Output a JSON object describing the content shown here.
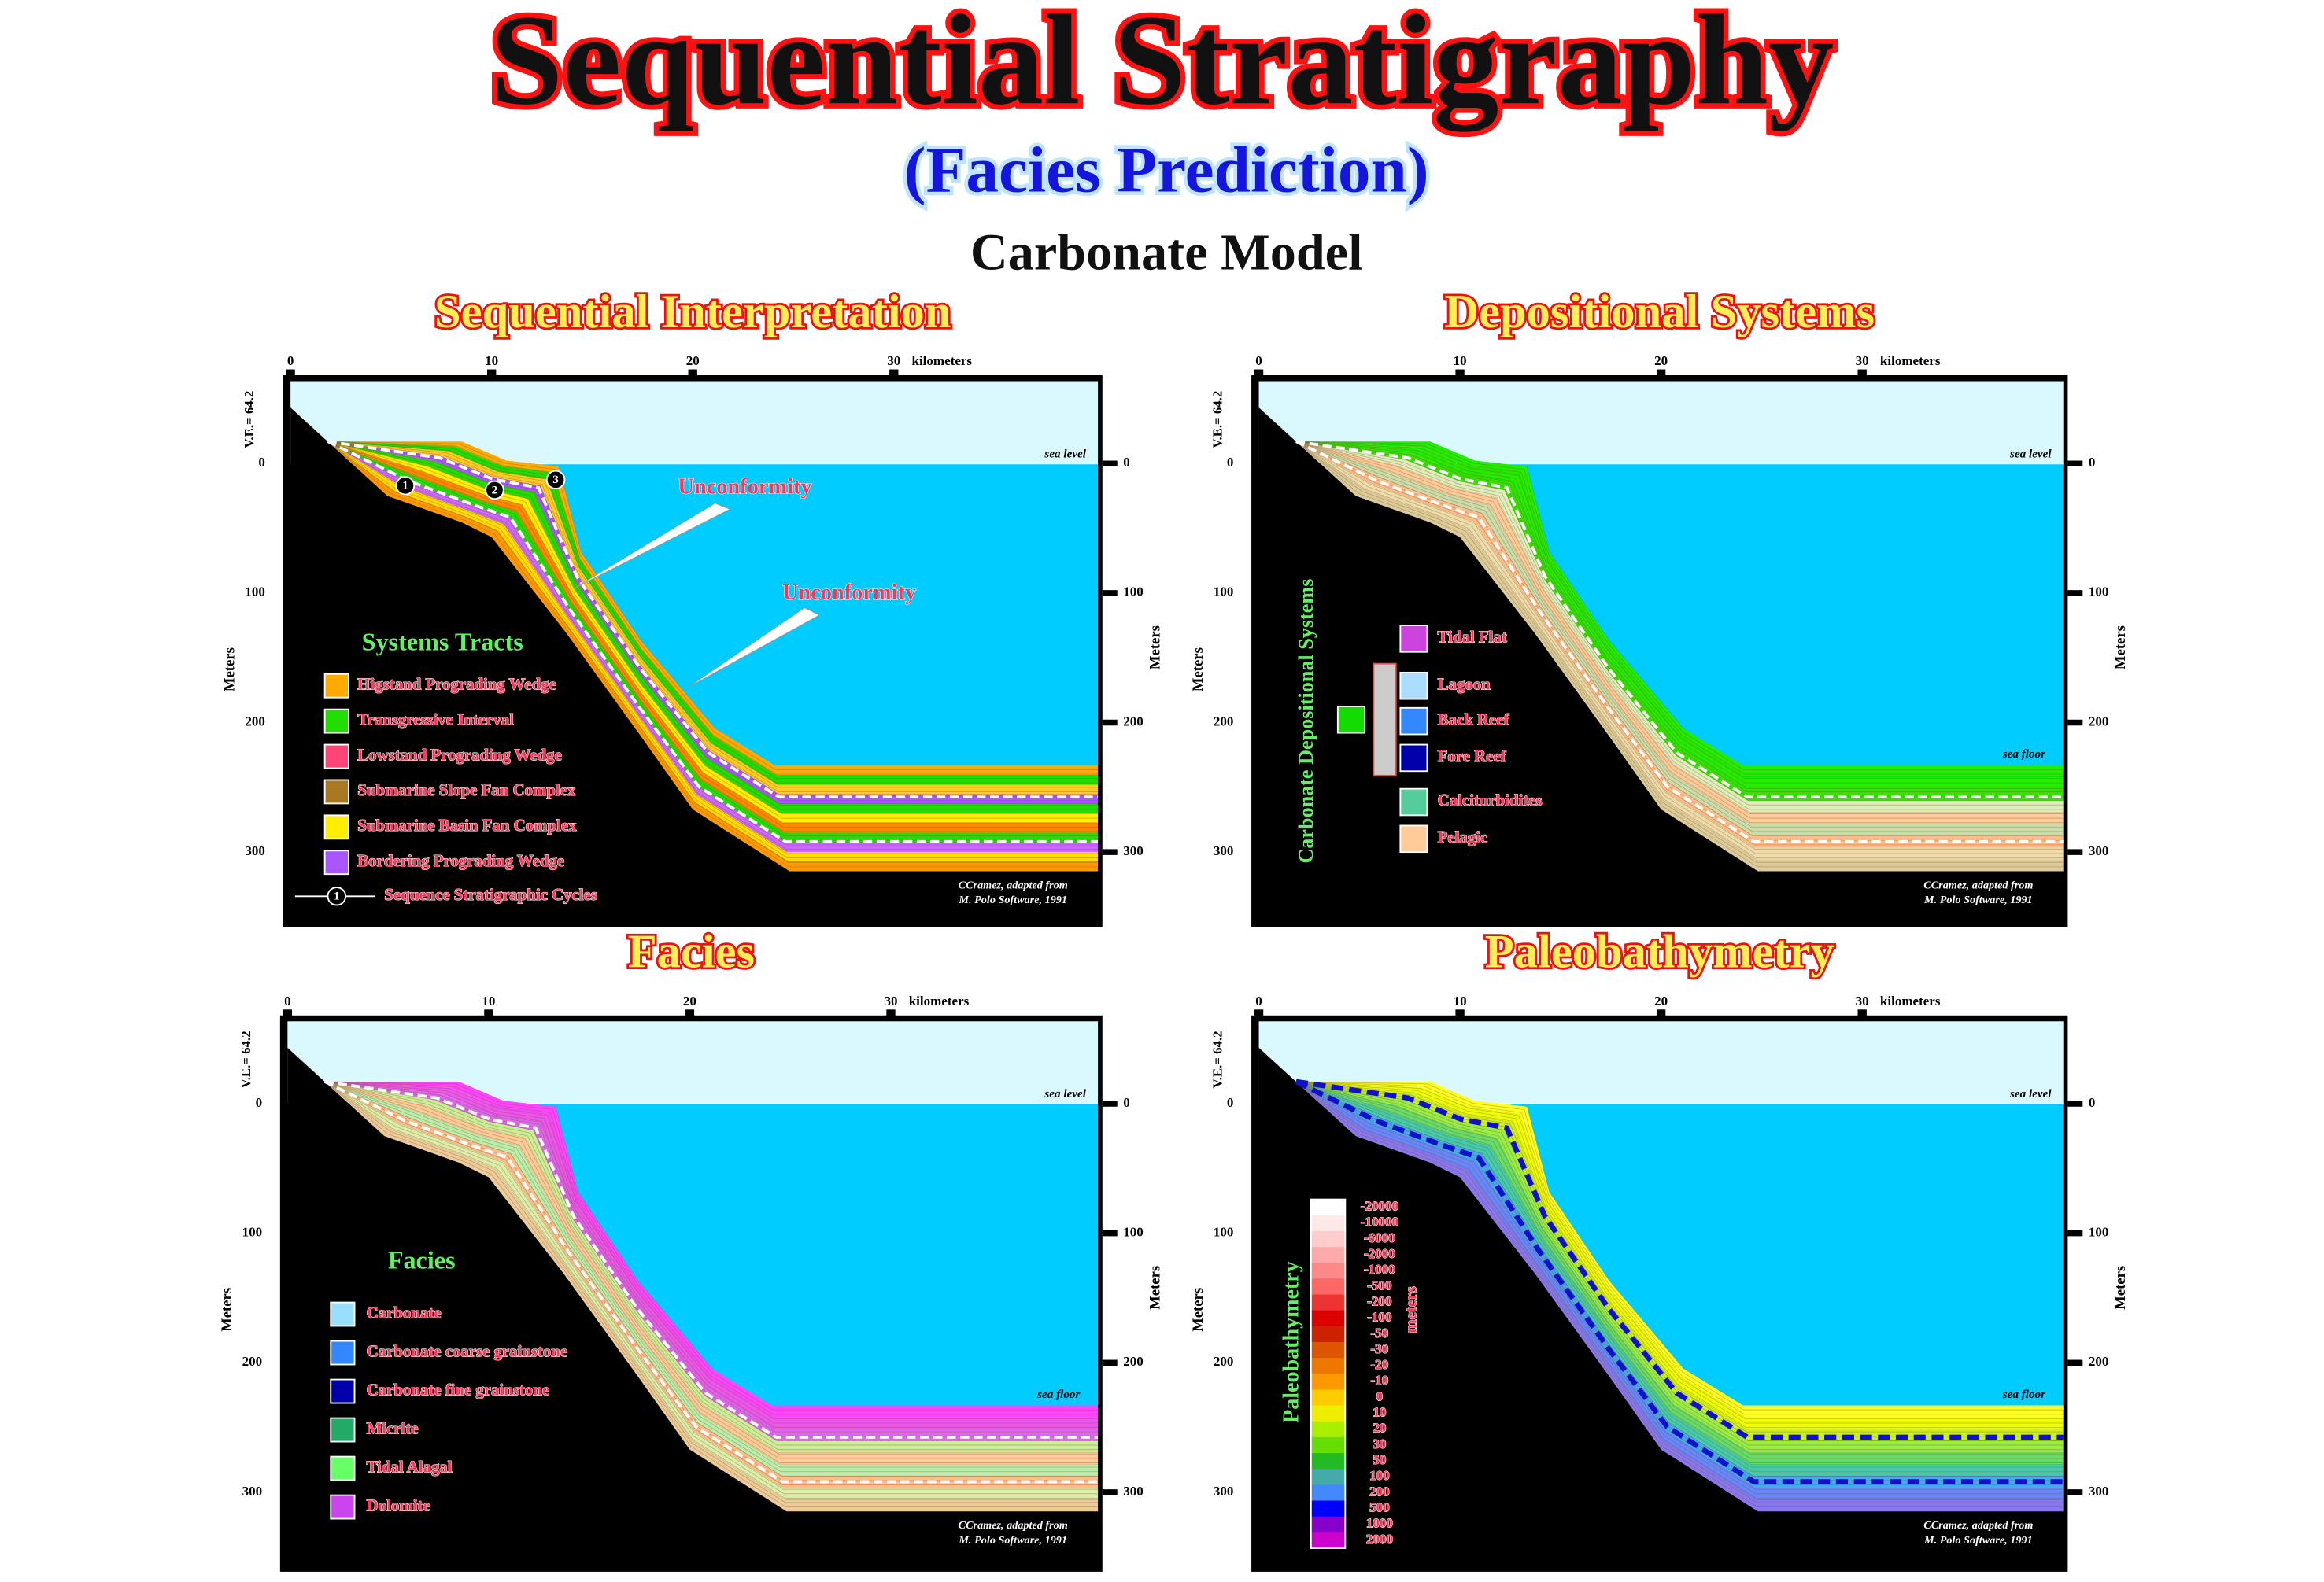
{
  "title": "Sequential Stratigraphy",
  "subtitle": "(Facies Prediction)",
  "model": "Carbonate Model",
  "panels": [
    {
      "title": "Sequential Interpretation",
      "x_ticks": [
        "0",
        "10",
        "20",
        "30"
      ],
      "x_unit": "kilometers",
      "vertical_exaggeration": "V.E.= 64.2",
      "y_ticks": [
        "0",
        "100",
        "200",
        "300"
      ],
      "y_label": "Meters",
      "sea_level": "sea level",
      "credit": [
        "CCramez, adapted from",
        "M. Polo Software, 1991"
      ],
      "annotations": [
        "Unconformity",
        "Unconformity"
      ],
      "cycle_markers": [
        "1",
        "2",
        "3"
      ],
      "legend": {
        "title": "Systems Tracts",
        "items": [
          {
            "label": "Higstand Prograding Wedge",
            "color": "#ffaa00"
          },
          {
            "label": "Transgressive Interval",
            "color": "#22dd00"
          },
          {
            "label": "Lowstand Prograding Wedge",
            "color": "#ff4477"
          },
          {
            "label": "Submarine Slope Fan Complex",
            "color": "#aa7722"
          },
          {
            "label": "Submarine Basin Fan Complex",
            "color": "#ffee00"
          },
          {
            "label": "Bordering Prograding Wedge",
            "color": "#aa55ff"
          }
        ],
        "cycle_marker": "1",
        "cycle_label": "Sequence Stratigraphic Cycles"
      }
    },
    {
      "title": "Depositional Systems",
      "x_ticks": [
        "0",
        "10",
        "20",
        "30"
      ],
      "x_unit": "kilometers",
      "vertical_exaggeration": "V.E.= 64.2",
      "y_ticks": [
        "0",
        "100",
        "200",
        "300"
      ],
      "y_label": "Meters",
      "sea_level": "sea level",
      "sea_floor": "sea floor",
      "credit": [
        "CCramez, adapted from",
        "M. Polo Software, 1991"
      ],
      "legend": {
        "title": "Carbonate Depositional Systems",
        "items": [
          {
            "label": "Tidal Flat",
            "color": "#cc44dd"
          },
          {
            "label": "Lagoon",
            "color": "#aaddff"
          },
          {
            "label": "Back Reef",
            "color": "#3388ff"
          },
          {
            "label": "Fore Reef",
            "color": "#0000aa"
          },
          {
            "label": "Calciturbidites",
            "color": "#55cc99"
          },
          {
            "label": "Pelagic",
            "color": "#ffcc99"
          }
        ]
      }
    },
    {
      "title": "Facies",
      "x_ticks": [
        "0",
        "10",
        "20",
        "30"
      ],
      "x_unit": "kilometers",
      "vertical_exaggeration": "V.E.= 64.2",
      "y_ticks": [
        "0",
        "100",
        "200",
        "300"
      ],
      "y_label": "Meters",
      "sea_level": "sea level",
      "sea_floor": "sea floor",
      "credit": [
        "CCramez, adapted from",
        "M. Polo Software, 1991"
      ],
      "legend": {
        "title": "Facies",
        "items": [
          {
            "label": "Carbonate",
            "color": "#99ddff"
          },
          {
            "label": "Carbonate coarse grainstone",
            "color": "#3388ff"
          },
          {
            "label": "Carbonate fine grainstone",
            "color": "#0000aa"
          },
          {
            "label": "Micrite",
            "color": "#22aa66"
          },
          {
            "label": "Tidal Alagal",
            "color": "#66ff66"
          },
          {
            "label": "Dolomite",
            "color": "#cc44ee"
          }
        ]
      }
    },
    {
      "title": "Paleobathymetry",
      "x_ticks": [
        "0",
        "10",
        "20",
        "30"
      ],
      "x_unit": "kilometers",
      "vertical_exaggeration": "V.E.= 64.2",
      "y_ticks": [
        "0",
        "100",
        "200",
        "300"
      ],
      "y_label": "Meters",
      "sea_level": "sea level",
      "sea_floor": "sea floor",
      "credit": [
        "CCramez, adapted from",
        "M. Polo Software, 1991"
      ],
      "scale": {
        "title": "Paleobathymetry",
        "unit": "meters",
        "levels": [
          "-20000",
          "-10000",
          "-6000",
          "-2000",
          "-1000",
          "-500",
          "-200",
          "-100",
          "-50",
          "-30",
          "-20",
          "-10",
          "0",
          "10",
          "20",
          "30",
          "50",
          "100",
          "200",
          "500",
          "1000",
          "2000"
        ]
      }
    }
  ]
}
